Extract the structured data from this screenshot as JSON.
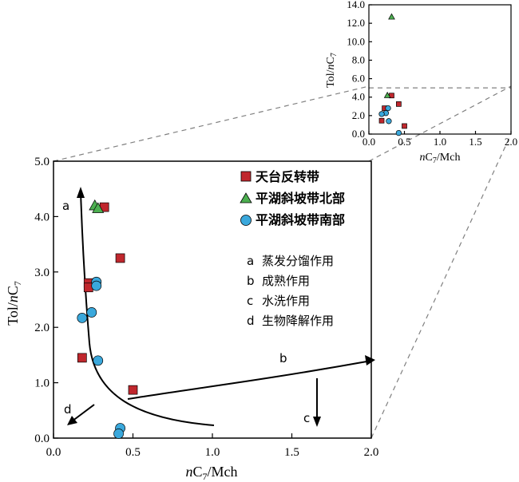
{
  "chart_data": [
    {
      "id": "main",
      "type": "scatter",
      "xlabel_italic": "n",
      "xlabel_main": "C",
      "xlabel_sub": "7",
      "xlabel_rest": "/Mch",
      "ylabel_plain": "Tol/",
      "ylabel_italic": "n",
      "ylabel_main": "C",
      "ylabel_sub": "7",
      "xlim": [
        0,
        2.0
      ],
      "ylim": [
        0,
        5.0
      ],
      "x_ticks": [
        "0.0",
        "0.5",
        "1.0",
        "1.5",
        "2.0"
      ],
      "y_ticks": [
        "0.0",
        "1.0",
        "2.0",
        "3.0",
        "4.0",
        "5.0"
      ],
      "series": [
        {
          "name": "天台反转带",
          "marker": "square",
          "color": "#c0272d",
          "points": [
            [
              0.32,
              4.17
            ],
            [
              0.42,
              3.25
            ],
            [
              0.22,
              2.8
            ],
            [
              0.22,
              2.72
            ],
            [
              0.18,
              1.45
            ],
            [
              0.5,
              0.87
            ]
          ]
        },
        {
          "name": "平湖斜坡带北部",
          "marker": "triangle",
          "color": "#4caf50",
          "points": [
            [
              0.26,
              4.2
            ],
            [
              0.28,
              4.15
            ]
          ]
        },
        {
          "name": "平湖斜坡带南部",
          "marker": "circle",
          "color": "#3aa8dc",
          "points": [
            [
              0.27,
              2.82
            ],
            [
              0.27,
              2.75
            ],
            [
              0.24,
              2.27
            ],
            [
              0.18,
              2.17
            ],
            [
              0.28,
              1.4
            ],
            [
              0.42,
              0.18
            ],
            [
              0.41,
              0.08
            ]
          ]
        }
      ],
      "annotations": [
        {
          "label": "a",
          "desc": "蒸发分馏作用"
        },
        {
          "label": "b",
          "desc": "成熟作用"
        },
        {
          "label": "c",
          "desc": "水洗作用"
        },
        {
          "label": "d",
          "desc": "生物降解作用"
        }
      ]
    },
    {
      "id": "inset",
      "type": "scatter",
      "xlim": [
        0,
        2.0
      ],
      "ylim": [
        0,
        14.0
      ],
      "x_ticks": [
        "0.0",
        "0.5",
        "1.0",
        "1.5",
        "2.0"
      ],
      "y_ticks": [
        "0.0",
        "2.0",
        "4.0",
        "6.0",
        "8.0",
        "10.0",
        "12.0",
        "14.0"
      ],
      "xlabel_italic": "n",
      "xlabel_main": "C",
      "xlabel_sub": "7",
      "xlabel_rest": "/Mch",
      "ylabel_plain": "Tol/",
      "ylabel_italic": "n",
      "ylabel_main": "C",
      "ylabel_sub": "7",
      "reference_y": 5.0,
      "series": [
        {
          "name": "天台反转带",
          "marker": "square",
          "color": "#c0272d",
          "points": [
            [
              0.32,
              4.17
            ],
            [
              0.42,
              3.25
            ],
            [
              0.22,
              2.8
            ],
            [
              0.18,
              1.45
            ],
            [
              0.5,
              0.87
            ]
          ]
        },
        {
          "name": "平湖斜坡带北部",
          "marker": "triangle",
          "color": "#4caf50",
          "points": [
            [
              0.32,
              12.7
            ],
            [
              0.26,
              4.2
            ]
          ]
        },
        {
          "name": "平湖斜坡带南部",
          "marker": "circle",
          "color": "#3aa8dc",
          "points": [
            [
              0.27,
              2.8
            ],
            [
              0.24,
              2.27
            ],
            [
              0.18,
              2.17
            ],
            [
              0.28,
              1.4
            ],
            [
              0.42,
              0.12
            ]
          ]
        }
      ]
    }
  ]
}
